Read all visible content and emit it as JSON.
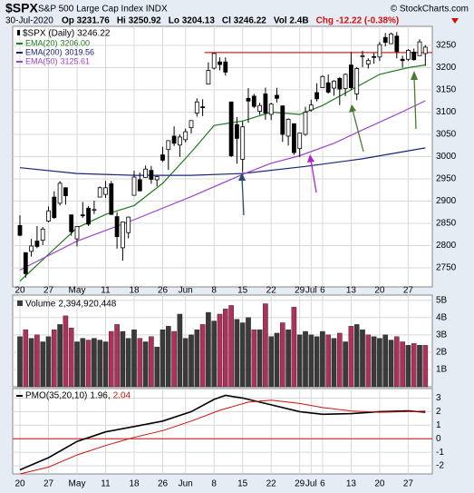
{
  "header": {
    "symbol": "$SPX",
    "name": "S&P 500 Large Cap Index INDX",
    "copyright": "© StockCharts.com",
    "date": "30-Jul-2020",
    "fields": [
      "Op 3231.76",
      "Hi 3250.92",
      "Lo 3204.13",
      "Cl 3246.22",
      "Vol 2.4B"
    ],
    "change": "Chg -12.22 (-0.38%)"
  },
  "chart_data": [
    {
      "type": "candlestick",
      "name": "$SPX (Daily)",
      "legend_label": "3246.22",
      "categories": [
        "20",
        null,
        null,
        null,
        null,
        "27",
        null,
        null,
        null,
        null,
        "May",
        null,
        null,
        null,
        null,
        "11",
        null,
        null,
        null,
        null,
        "18",
        null,
        null,
        null,
        null,
        "26",
        null,
        null,
        null,
        "Jun",
        null,
        null,
        null,
        null,
        "8",
        null,
        null,
        null,
        null,
        "15",
        null,
        null,
        null,
        null,
        "22",
        null,
        null,
        null,
        null,
        "29",
        null,
        "Jul",
        null,
        "6",
        null,
        null,
        null,
        null,
        "13",
        null,
        null,
        null,
        null,
        "20",
        null,
        null,
        null,
        null,
        "27",
        null,
        null,
        null
      ],
      "open": [
        2845,
        2784,
        2787,
        2810,
        2812,
        2855,
        2909,
        2895,
        2930,
        2869,
        2815,
        2869,
        2884,
        2879,
        2909,
        2915,
        2939,
        2865,
        2795,
        2829,
        2913,
        2948,
        2953,
        2969,
        2948,
        3004,
        3016,
        3046,
        3026,
        3038,
        3065,
        3098,
        3112,
        3163,
        3199,
        3213,
        3213,
        3123,
        3072,
        2994,
        3131,
        3136,
        3102,
        3141,
        3095,
        3138,
        3114,
        3046,
        3074,
        3018,
        3050,
        3105,
        3144,
        3155,
        3166,
        3154,
        3176,
        3153,
        3206,
        3141,
        3226,
        3208,
        3225,
        3224,
        3268,
        3254,
        3271,
        3219,
        3219,
        3235,
        3227,
        3231.76
      ],
      "high": [
        2868,
        2785,
        2815,
        2844,
        2842,
        2888,
        2922,
        2945,
        2931,
        2869,
        2844,
        2898,
        2889,
        2901,
        2933,
        2945,
        2945,
        2875,
        2852,
        2865,
        2968,
        2964,
        2980,
        2979,
        2957,
        3022,
        3036,
        3068,
        3050,
        3063,
        3081,
        3131,
        3129,
        3212,
        3233,
        3223,
        3223,
        3123,
        3089,
        3079,
        3154,
        3141,
        3121,
        3155,
        3121,
        3155,
        3115,
        3086,
        3074,
        3053,
        3112,
        3128,
        3165,
        3183,
        3185,
        3172,
        3179,
        3187,
        3235,
        3201,
        3238,
        3221,
        3233,
        3258,
        3278,
        3279,
        3280,
        3227,
        3242,
        3243,
        3264,
        3250.92
      ],
      "low": [
        2821,
        2728,
        2775,
        2794,
        2801,
        2852,
        2860,
        2890,
        2892,
        2822,
        2798,
        2862,
        2844,
        2871,
        2909,
        2907,
        2869,
        2793,
        2766,
        2816,
        2913,
        2922,
        2953,
        2939,
        2933,
        2988,
        2970,
        3024,
        2999,
        3032,
        3052,
        3090,
        3091,
        3163,
        3196,
        3194,
        3182,
        2999,
        2984,
        2965,
        3076,
        3109,
        3094,
        3083,
        3082,
        3122,
        3033,
        3025,
        3004,
        2999,
        3047,
        3101,
        3124,
        3155,
        3142,
        3137,
        3116,
        3136,
        3150,
        3127,
        3201,
        3198,
        3209,
        3215,
        3248,
        3253,
        3221,
        3200,
        3215,
        3216,
        3227,
        3204.13
      ],
      "close": [
        2823,
        2737,
        2799,
        2798,
        2837,
        2878,
        2863,
        2940,
        2912,
        2831,
        2843,
        2868,
        2848,
        2881,
        2930,
        2930,
        2870,
        2820,
        2853,
        2864,
        2954,
        2923,
        2972,
        2949,
        2955,
        2992,
        3036,
        3030,
        3044,
        3056,
        3081,
        3123,
        3112,
        3194,
        3232,
        3207,
        3190,
        3002,
        3041,
        3067,
        3125,
        3113,
        3115,
        3098,
        3118,
        3131,
        3050,
        3084,
        3009,
        3053,
        3100,
        3116,
        3130,
        3180,
        3145,
        3170,
        3152,
        3185,
        3155,
        3198,
        3227,
        3216,
        3225,
        3252,
        3257,
        3276,
        3236,
        3216,
        3239,
        3218,
        3258,
        3246.22
      ],
      "ylim": [
        2707,
        3293
      ],
      "yticks": [
        2750,
        2800,
        2850,
        2900,
        2950,
        3000,
        3050,
        3100,
        3150,
        3200,
        3250
      ],
      "grid": true,
      "reference_line": {
        "value": 3234,
        "color": "#e02020"
      },
      "overlays": [
        {
          "name": "EMA(20)",
          "legend_label": "3206.00",
          "color": "#1e7b1e",
          "x": [
            0,
            5,
            10,
            15,
            20,
            25,
            30,
            34,
            39,
            44,
            49,
            53,
            58,
            63,
            68,
            71
          ],
          "values": [
            2720,
            2780,
            2840,
            2870,
            2890,
            2940,
            3010,
            3070,
            3080,
            3100,
            3095,
            3115,
            3150,
            3185,
            3200,
            3206
          ]
        },
        {
          "name": "EMA(200)",
          "legend_label": "3019.56",
          "color": "#1a237e",
          "x": [
            0,
            10,
            20,
            30,
            39,
            50,
            60,
            71
          ],
          "values": [
            2975,
            2962,
            2958,
            2958,
            2962,
            2978,
            2995,
            3019.56
          ]
        },
        {
          "name": "EMA(50)",
          "legend_label": "3125.61",
          "color": "#a040d0",
          "x": [
            0,
            10,
            20,
            30,
            39,
            44,
            49,
            55,
            60,
            66,
            71
          ],
          "values": [
            2745,
            2810,
            2858,
            2910,
            2960,
            2985,
            3002,
            3030,
            3060,
            3095,
            3125.61
          ]
        }
      ]
    },
    {
      "type": "bar",
      "title": "Volume",
      "title_label": "2,394,920,448",
      "up_color": "#3a3a3a",
      "down_color": "#b0305c",
      "values": [
        2.9,
        3.3,
        2.8,
        3.0,
        2.6,
        2.9,
        3.3,
        3.6,
        4.1,
        3.4,
        2.6,
        2.8,
        2.7,
        2.8,
        2.7,
        2.6,
        3.2,
        3.6,
        3.2,
        2.8,
        3.3,
        2.8,
        2.6,
        2.9,
        2.3,
        3.3,
        3.5,
        3.2,
        4.2,
        2.8,
        3.0,
        3.3,
        3.6,
        4.3,
        3.8,
        4.2,
        4.5,
        4.7,
        3.9,
        3.7,
        4.0,
        3.3,
        3.3,
        4.8,
        2.9,
        3.1,
        3.7,
        3.3,
        4.6,
        3.0,
        3.2,
        3.0,
        2.9,
        3.2,
        3.0,
        2.8,
        3.1,
        2.6,
        3.5,
        3.6,
        3.3,
        3.0,
        2.9,
        2.8,
        3.0,
        2.7,
        2.9,
        2.6,
        2.4,
        2.5,
        2.4,
        2.394920448
      ],
      "ylim": [
        0,
        5.3
      ],
      "yticks": [
        {
          "value": 1,
          "label": "1B"
        },
        {
          "value": 2,
          "label": "2B"
        },
        {
          "value": 3,
          "label": "3B"
        },
        {
          "value": 4,
          "label": "4B"
        },
        {
          "value": 5,
          "label": "5B"
        }
      ],
      "grid": true
    },
    {
      "type": "line",
      "title": "PMO(35,20,10)",
      "series": [
        {
          "label": "1.96,",
          "color": "#000000",
          "x": [
            0,
            5,
            10,
            15,
            20,
            25,
            30,
            34,
            36,
            39,
            44,
            49,
            53,
            58,
            63,
            68,
            71
          ],
          "values": [
            -2.3,
            -1.4,
            -0.2,
            0.5,
            0.9,
            1.3,
            2.0,
            2.9,
            3.2,
            3.0,
            2.5,
            2.0,
            1.8,
            1.85,
            2.0,
            2.05,
            1.96
          ]
        },
        {
          "label": "2.04",
          "color": "#d01010",
          "x": [
            0,
            5,
            10,
            15,
            20,
            25,
            30,
            35,
            40,
            44,
            49,
            53,
            58,
            63,
            68,
            71
          ],
          "values": [
            -2.6,
            -2.1,
            -1.2,
            -0.5,
            0.1,
            0.6,
            1.3,
            2.1,
            2.7,
            2.85,
            2.6,
            2.3,
            2.05,
            1.95,
            2.0,
            2.04
          ]
        }
      ],
      "ylim": [
        -2.6,
        3.7
      ],
      "yticks": [
        -2,
        -1,
        0,
        1,
        2,
        3
      ],
      "grid": true,
      "zero_line_color": "#d01010"
    }
  ]
}
